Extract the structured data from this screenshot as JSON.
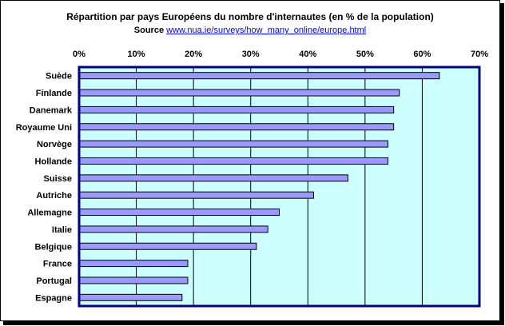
{
  "chart_data": {
    "type": "bar",
    "orientation": "horizontal",
    "title": "Répartition par pays Européens du nombre d'internautes (en % de la population)",
    "subtitle_prefix": "Source",
    "source_url": "www.nua.ie/surveys/how_many_online/europe.html",
    "categories": [
      "Suède",
      "Finlande",
      "Danemark",
      "Royaume Uni",
      "Norvège",
      "Hollande",
      "Suisse",
      "Autriche",
      "Allemagne",
      "Italie",
      "Belgique",
      "France",
      "Portugal",
      "Espagne"
    ],
    "values": [
      63,
      56,
      55,
      55,
      54,
      54,
      47,
      41,
      35,
      33,
      31,
      19,
      19,
      18
    ],
    "xlim": [
      0,
      70
    ],
    "xticks": [
      0,
      10,
      20,
      30,
      40,
      50,
      60,
      70
    ],
    "xtick_labels": [
      "0%",
      "10%",
      "20%",
      "30%",
      "40%",
      "50%",
      "60%",
      "70%"
    ],
    "x_axis_position": "top",
    "grid": true,
    "legend": "none",
    "colors": {
      "bar_fill": "#9999ff",
      "bar_stroke": "#000000",
      "plot_bg": "#ccffff",
      "plot_border": "#000080",
      "gridline": "#000000"
    }
  }
}
